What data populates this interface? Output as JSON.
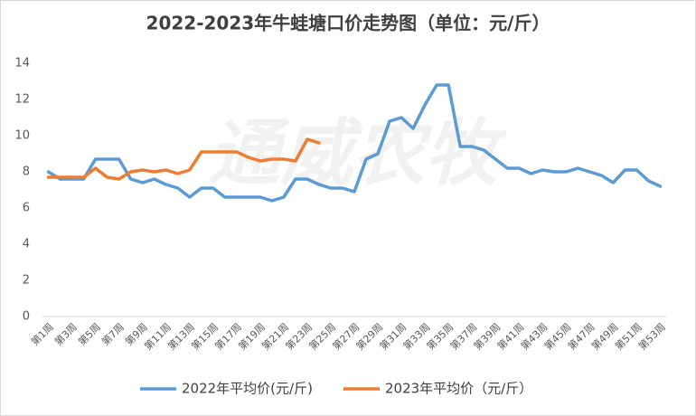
{
  "chart_data": {
    "type": "line",
    "title": "2022-2023年牛蛙塘口价走势图（单位：元/斤）",
    "watermark": "通威农牧",
    "categories": [
      "第1周",
      null,
      "第3周",
      null,
      "第5周",
      null,
      "第7周",
      null,
      "第9周",
      null,
      "第11周",
      null,
      "第13周",
      null,
      "第15周",
      null,
      "第17周",
      null,
      "第19周",
      null,
      "第21周",
      null,
      "第23周",
      null,
      "第25周",
      null,
      "第27周",
      null,
      "第29周",
      null,
      "第31周",
      null,
      "第33周",
      null,
      "第35周",
      null,
      "第37周",
      null,
      "第39周",
      null,
      "第41周",
      null,
      "第43周",
      null,
      "第45周",
      null,
      "第47周",
      null,
      "第49周",
      null,
      "第51周",
      null,
      "第53周"
    ],
    "series": [
      {
        "name": "2022年平均价(元/斤)",
        "color": "#5b9bd5",
        "values": [
          8.0,
          7.6,
          7.6,
          7.6,
          8.7,
          8.7,
          8.7,
          7.6,
          7.4,
          7.6,
          7.3,
          7.1,
          6.6,
          7.1,
          7.1,
          6.6,
          6.6,
          6.6,
          6.6,
          6.4,
          6.6,
          7.6,
          7.6,
          7.3,
          7.1,
          7.1,
          6.9,
          8.7,
          9.0,
          10.8,
          11.0,
          10.4,
          11.7,
          12.8,
          12.8,
          9.4,
          9.4,
          9.2,
          8.7,
          8.2,
          8.2,
          7.9,
          8.1,
          8.0,
          8.0,
          8.2,
          8.0,
          7.8,
          7.4,
          8.1,
          8.1,
          7.5,
          7.2
        ]
      },
      {
        "name": "2023年平均价（元/斤）",
        "color": "#ed7d31",
        "values": [
          7.7,
          7.7,
          7.7,
          7.7,
          8.2,
          7.7,
          7.6,
          8.0,
          8.1,
          8.0,
          8.1,
          7.9,
          8.1,
          9.1,
          9.1,
          9.1,
          9.1,
          8.8,
          8.6,
          8.7,
          8.7,
          8.6,
          9.8,
          9.6,
          null,
          null,
          null,
          null,
          null,
          null,
          null,
          null,
          null,
          null,
          null,
          null,
          null,
          null,
          null,
          null,
          null,
          null,
          null,
          null,
          null,
          null,
          null,
          null,
          null,
          null,
          null,
          null,
          null
        ]
      }
    ],
    "ylim": [
      0,
      14
    ],
    "yticks": [
      0,
      2,
      4,
      6,
      8,
      10,
      12,
      14
    ],
    "grid": false,
    "legend": "bottom"
  }
}
